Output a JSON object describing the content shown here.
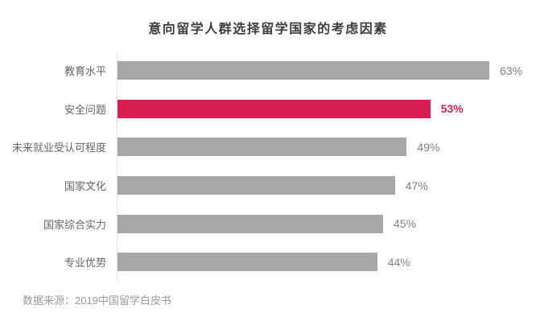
{
  "title": "意向留学人群选择留学国家的考虑因素",
  "source": "数据来源：2019中国留学白皮书",
  "chart_data": {
    "type": "bar",
    "orientation": "horizontal",
    "title": "意向留学人群选择留学国家的考虑因素",
    "categories": [
      "教育水平",
      "安全问题",
      "未来就业受认可程度",
      "国家文化",
      "国家综合实力",
      "专业优势"
    ],
    "values": [
      63,
      53,
      49,
      47,
      45,
      44
    ],
    "data_labels": [
      "63%",
      "53%",
      "49%",
      "47%",
      "45%",
      "44%"
    ],
    "unit": "%",
    "xlim": [
      0,
      63
    ],
    "highlight_index": 1,
    "bar_color": "#a7a7a7",
    "highlight_color": "#d81e4e",
    "axis_line_color": "#e2e2e2",
    "grid": false,
    "legend": false,
    "source_note": "数据来源：2019中国留学白皮书"
  }
}
